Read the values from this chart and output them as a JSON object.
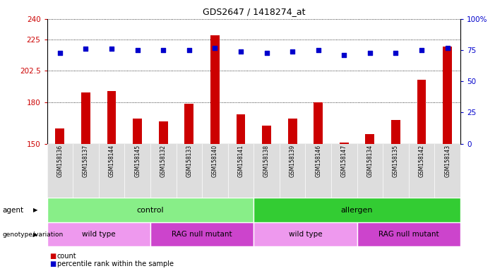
{
  "title": "GDS2647 / 1418274_at",
  "samples": [
    "GSM158136",
    "GSM158137",
    "GSM158144",
    "GSM158145",
    "GSM158132",
    "GSM158133",
    "GSM158140",
    "GSM158141",
    "GSM158138",
    "GSM158139",
    "GSM158146",
    "GSM158147",
    "GSM158134",
    "GSM158135",
    "GSM158142",
    "GSM158143"
  ],
  "counts": [
    161,
    187,
    188,
    168,
    166,
    179,
    228,
    171,
    163,
    168,
    180,
    151,
    157,
    167,
    196,
    220
  ],
  "percentile_ranks": [
    73,
    76,
    76,
    75,
    75,
    75,
    77,
    74,
    73,
    74,
    75,
    71,
    73,
    73,
    75,
    77
  ],
  "bar_color": "#cc0000",
  "dot_color": "#0000cc",
  "ylim_left": [
    150,
    240
  ],
  "ylim_right": [
    0,
    100
  ],
  "yticks_left": [
    150,
    180,
    202.5,
    225,
    240
  ],
  "ytick_labels_left": [
    "150",
    "180",
    "202.5",
    "225",
    "240"
  ],
  "yticks_right": [
    0,
    25,
    50,
    75,
    100
  ],
  "ytick_labels_right": [
    "0",
    "25",
    "50",
    "75",
    "100%"
  ],
  "agent_groups": [
    {
      "label": "control",
      "start": 0,
      "end": 8,
      "color": "#88ee88"
    },
    {
      "label": "allergen",
      "start": 8,
      "end": 16,
      "color": "#33cc33"
    }
  ],
  "genotype_groups": [
    {
      "label": "wild type",
      "start": 0,
      "end": 4,
      "color": "#ee99ee"
    },
    {
      "label": "RAG null mutant",
      "start": 4,
      "end": 8,
      "color": "#cc44cc"
    },
    {
      "label": "wild type",
      "start": 8,
      "end": 12,
      "color": "#ee99ee"
    },
    {
      "label": "RAG null mutant",
      "start": 12,
      "end": 16,
      "color": "#cc44cc"
    }
  ],
  "bg_color": "#ffffff",
  "bar_width": 0.35,
  "xlabel_color": "#cc0000",
  "ylabel_right_color": "#0000cc"
}
